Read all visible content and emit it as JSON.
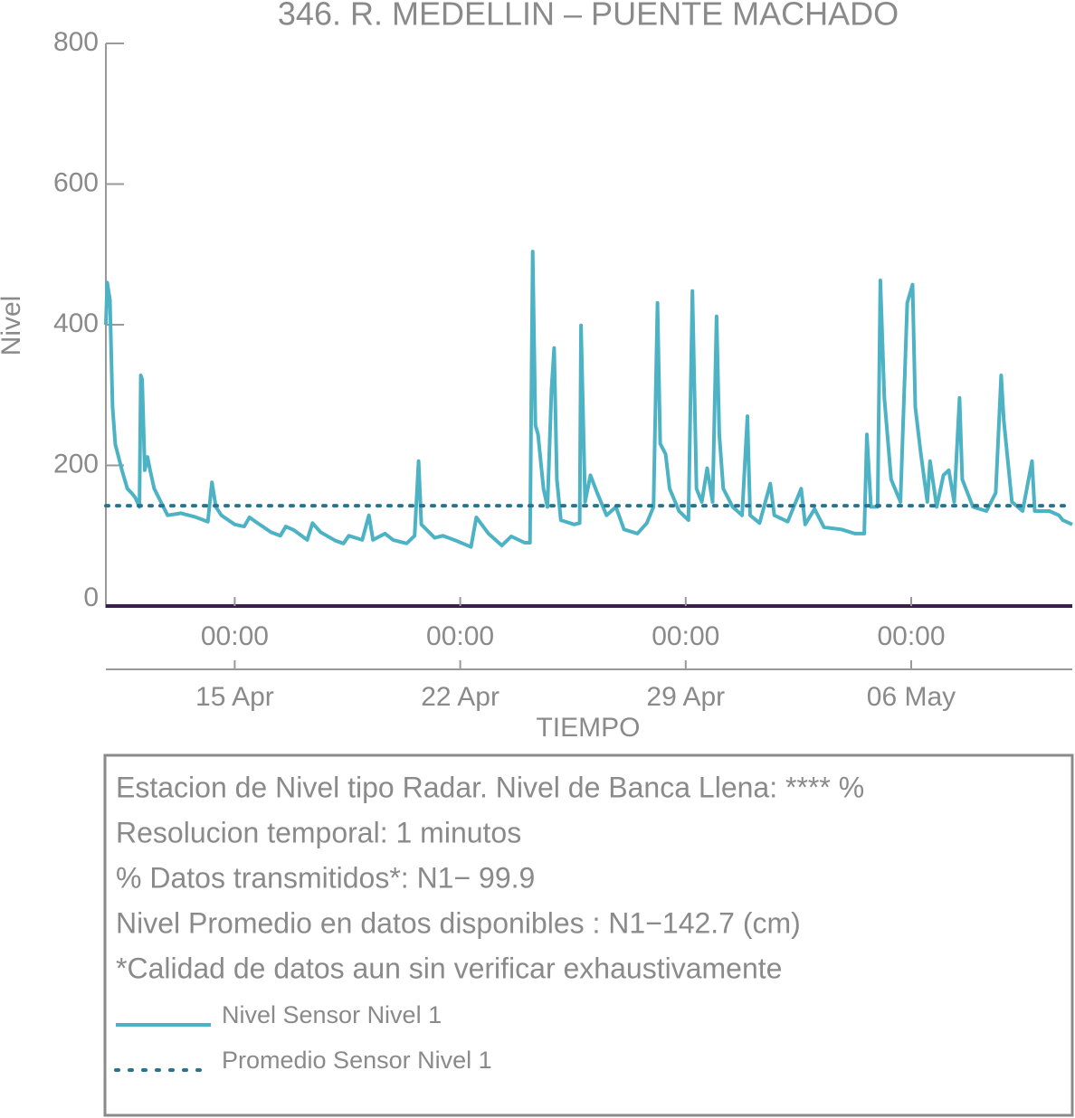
{
  "chart_data": {
    "type": "line",
    "title": "346. R. MEDELLIN – PUENTE MACHADO",
    "ylabel": "Nivel",
    "xlabel": "TIEMPO",
    "ylim": [
      0,
      800
    ],
    "yticks": [
      0,
      200,
      400,
      600,
      800
    ],
    "xlim": [
      "04-11 00:00",
      "05-11 00:00"
    ],
    "xticks": [
      {
        "value": "04-15 00:00",
        "label": [
          "00:00",
          "15 Apr"
        ]
      },
      {
        "value": "04-22 00:00",
        "label": [
          "00:00",
          "22 Apr"
        ]
      },
      {
        "value": "04-29 00:00",
        "label": [
          "00:00",
          "29 Apr"
        ]
      },
      {
        "value": "05-06 00:00",
        "label": [
          "00:00",
          "06 May"
        ]
      }
    ],
    "series": [
      {
        "name": "Nivel Sensor Nivel 1",
        "color": "#4db3c4",
        "style": "solid",
        "x": [
          "04-11 00:00",
          "04-11 01:00",
          "04-11 03:00",
          "04-11 05:00",
          "04-11 07:00",
          "04-11 12:00",
          "04-11 16:00",
          "04-11 19:00",
          "04-11 22:00",
          "04-12 01:00",
          "04-12 02:00",
          "04-12 03:00",
          "04-12 05:00",
          "04-12 07:00",
          "04-12 09:00",
          "04-12 12:00",
          "04-12 17:00",
          "04-12 22:00",
          "04-13 08:00",
          "04-13 18:00",
          "04-14 04:00",
          "04-14 07:00",
          "04-14 10:00",
          "04-14 14:00",
          "04-15 00:00",
          "04-15 07:00",
          "04-15 11:00",
          "04-15 17:00",
          "04-16 03:00",
          "04-16 10:00",
          "04-16 14:00",
          "04-16 20:00",
          "04-17 06:00",
          "04-17 10:00",
          "04-17 16:00",
          "04-18 03:00",
          "04-18 09:00",
          "04-18 13:00",
          "04-18 23:00",
          "04-19 04:00",
          "04-19 07:00",
          "04-19 16:00",
          "04-19 22:00",
          "04-20 08:00",
          "04-20 14:00",
          "04-20 17:00",
          "04-20 19:00",
          "04-21 05:00",
          "04-21 11:00",
          "04-21 21:00",
          "04-22 08:00",
          "04-22 12:00",
          "04-22 16:00",
          "04-22 21:00",
          "04-23 07:00",
          "04-23 14:00",
          "04-24 00:00",
          "04-24 04:00",
          "04-24 06:00",
          "04-24 08:00",
          "04-24 10:00",
          "04-24 14:00",
          "04-24 17:00",
          "04-24 20:00",
          "04-24 22:00",
          "04-25 00:00",
          "04-25 03:00",
          "04-25 13:00",
          "04-25 17:00",
          "04-25 18:00",
          "04-25 21:00",
          "04-26 01:00",
          "04-26 06:00",
          "04-26 13:00",
          "04-26 20:00",
          "04-27 02:00",
          "04-27 12:00",
          "04-27 19:00",
          "04-28 00:00",
          "04-28 03:00",
          "04-28 05:00",
          "04-28 09:00",
          "04-28 12:00",
          "04-28 19:00",
          "04-29 02:00",
          "04-29 05:00",
          "04-29 08:00",
          "04-29 12:00",
          "04-29 16:00",
          "04-29 20:00",
          "04-29 23:00",
          "04-30 01:00",
          "04-30 04:00",
          "04-30 11:00",
          "04-30 18:00",
          "04-30 22:00",
          "05-01 00:00",
          "05-01 07:00",
          "05-01 15:00",
          "05-01 18:00",
          "05-02 04:00",
          "05-02 14:00",
          "05-02 17:00",
          "05-03 00:00",
          "05-03 07:00",
          "05-03 20:00",
          "05-04 06:00",
          "05-04 13:00",
          "05-04 15:00",
          "05-04 18:00",
          "05-04 23:00",
          "05-05 01:00",
          "05-05 04:00",
          "05-05 09:00",
          "05-05 16:00",
          "05-05 21:00",
          "05-06 01:00",
          "05-06 03:00",
          "05-06 07:00",
          "05-06 12:00",
          "05-06 14:00",
          "05-06 19:00",
          "05-07 00:00",
          "05-07 04:00",
          "05-07 08:00",
          "05-07 12:00",
          "05-07 14:00",
          "05-07 22:00",
          "05-08 08:00",
          "05-08 15:00",
          "05-08 19:00",
          "05-08 21:00",
          "05-09 03:00",
          "05-09 11:00",
          "05-09 18:00",
          "05-09 20:00",
          "05-10 07:00",
          "05-10 14:00",
          "05-10 17:00",
          "05-11 00:00"
        ],
        "values": [
          400,
          460,
          435,
          283,
          230,
          193,
          167,
          161,
          154,
          141,
          328,
          322,
          193,
          212,
          193,
          167,
          148,
          129,
          132,
          127,
          120,
          176,
          141,
          129,
          116,
          113,
          126,
          118,
          105,
          100,
          113,
          108,
          94,
          118,
          105,
          93,
          89,
          100,
          94,
          129,
          94,
          103,
          94,
          89,
          100,
          206,
          116,
          97,
          100,
          93,
          84,
          126,
          116,
          103,
          86,
          99,
          90,
          90,
          504,
          257,
          244,
          167,
          141,
          309,
          367,
          180,
          122,
          116,
          118,
          399,
          148,
          186,
          161,
          129,
          141,
          109,
          103,
          118,
          141,
          431,
          231,
          216,
          167,
          135,
          122,
          448,
          167,
          148,
          196,
          148,
          412,
          244,
          167,
          141,
          129,
          270,
          129,
          118,
          174,
          129,
          120,
          167,
          116,
          138,
          112,
          109,
          103,
          103,
          244,
          141,
          141,
          463,
          296,
          180,
          148,
          431,
          457,
          283,
          219,
          148,
          206,
          141,
          186,
          193,
          148,
          296,
          180,
          141,
          135,
          161,
          328,
          264,
          148,
          135,
          206,
          135,
          135,
          129,
          122,
          116
        ]
      },
      {
        "name": "Promedio Sensor Nivel 1",
        "color": "#2a7390",
        "style": "dotted",
        "x": [
          "04-11 00:00",
          "05-11 00:00"
        ],
        "values": [
          142.7,
          142.7
        ]
      }
    ],
    "info_lines": [
      "Estacion de Nivel tipo Radar. Nivel de Banca Llena: **** %",
      "Resolucion temporal: 1 minutos",
      "% Datos transmitidos*: N1− 99.9",
      "Nivel Promedio en datos disponibles : N1−142.7 (cm)",
      "*Calidad de datos aun sin verificar exhaustivamente"
    ]
  }
}
